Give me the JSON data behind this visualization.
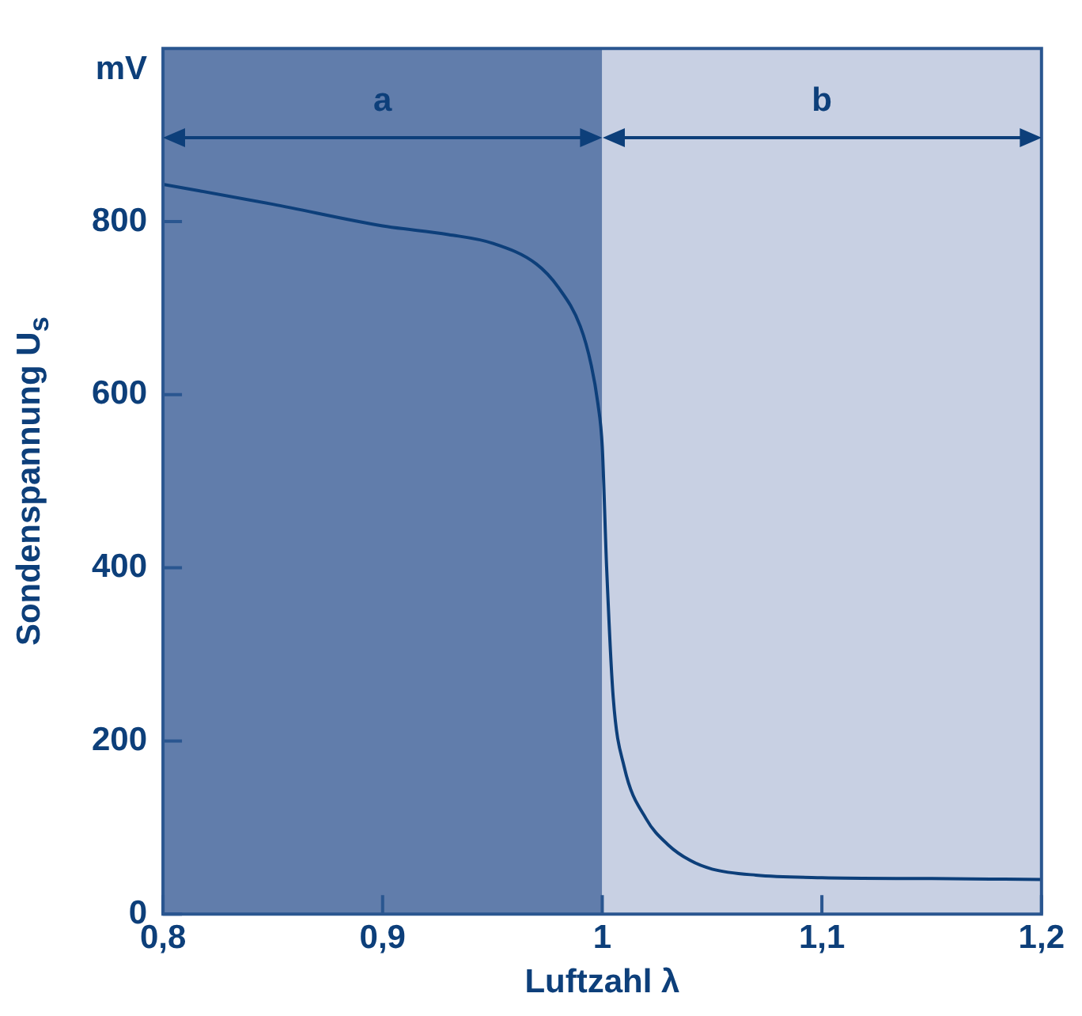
{
  "chart_data": {
    "type": "line",
    "xlabel": "Luftzahl λ",
    "ylabel": "Sondenspannung U$_{s}$",
    "annotations": [
      "mV"
    ],
    "x": [
      0.8,
      0.85,
      0.9,
      0.93,
      0.95,
      0.97,
      0.98,
      0.99,
      0.995,
      0.998,
      1.0,
      1.002,
      1.005,
      1.01,
      1.02,
      1.03,
      1.04,
      1.05,
      1.07,
      1.1,
      1.15,
      1.2
    ],
    "series": [
      {
        "color": "#0d3f7a",
        "values": [
          843,
          820,
          795,
          785,
          775,
          751,
          724,
          679,
          634,
          590,
          540,
          400,
          250,
          170,
          110,
          80,
          62,
          52,
          45,
          42,
          41,
          40
        ]
      }
    ],
    "xlim": [
      0.8,
      1.2
    ],
    "xticks": [
      {
        "value": 0.8,
        "label": "0,8"
      },
      {
        "value": 0.9,
        "label": "0,9"
      },
      1,
      {
        "value": 1.1,
        "label": "1,1"
      },
      {
        "value": 1.2,
        "label": "1,2"
      }
    ],
    "ylim": [
      0,
      1000
    ],
    "yticks": [
      0,
      200,
      400,
      600,
      800
    ],
    "bands": [
      {
        "axis": "x",
        "from": 0.8,
        "to": 1.0,
        "label": "a",
        "color": "#617dab"
      },
      {
        "axis": "x",
        "from": 1.0,
        "to": 1.2,
        "label": "b",
        "color": "#c8d0e3"
      }
    ],
    "grid": false,
    "legend": false,
    "marker": "none",
    "line_style": "solid"
  }
}
